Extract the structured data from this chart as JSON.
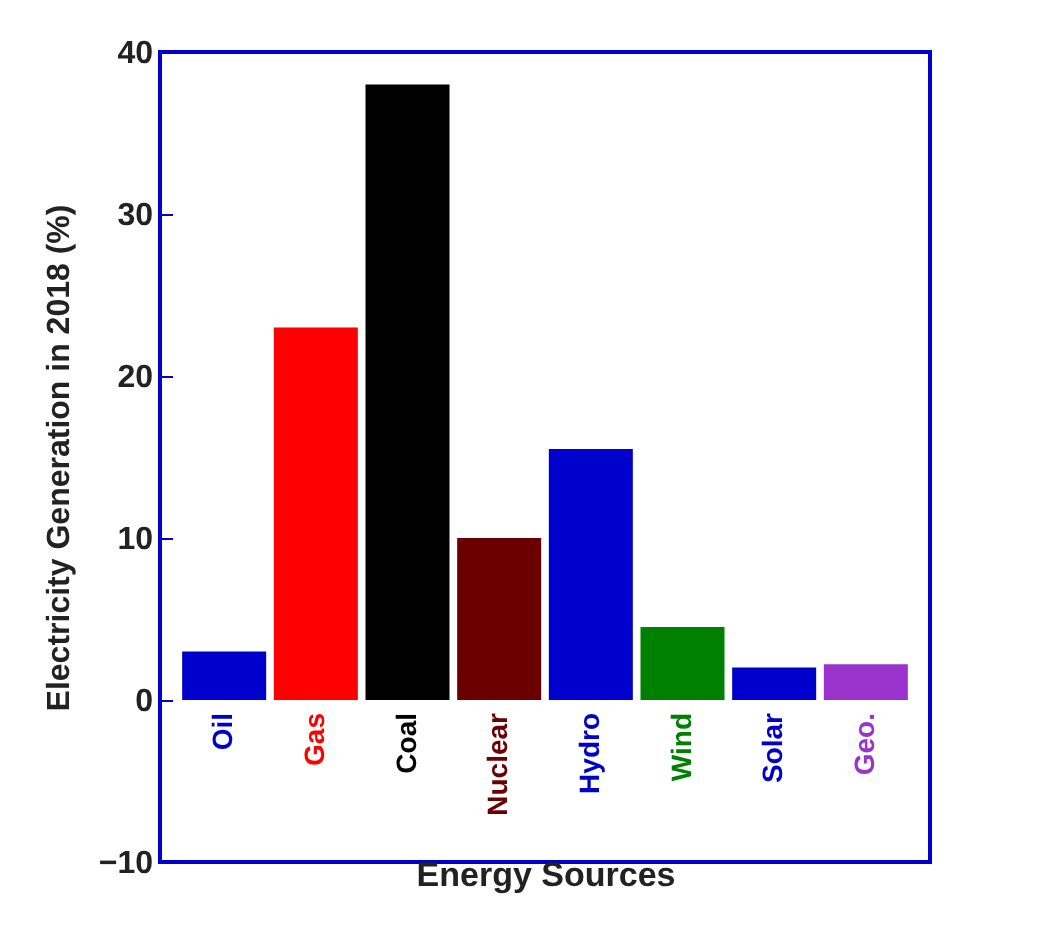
{
  "chart_data": {
    "type": "bar",
    "xlabel": "Energy Sources",
    "ylabel": "Electricity Generation in 2018 (%)",
    "categories": [
      "Oil",
      "Gas",
      "Coal",
      "Nuclear",
      "Hydro",
      "Wind",
      "Solar",
      "Geo."
    ],
    "values": [
      3,
      23,
      38,
      10,
      15.5,
      4.5,
      2,
      2.2
    ],
    "colors": [
      "#0000cc",
      "#ff0000",
      "#000000",
      "#6b0000",
      "#0000cc",
      "#008000",
      "#0000cc",
      "#9933cc"
    ],
    "ylim": [
      -10,
      40
    ],
    "yticks": [
      -10,
      0,
      10,
      20,
      30,
      40
    ],
    "grid": false
  }
}
